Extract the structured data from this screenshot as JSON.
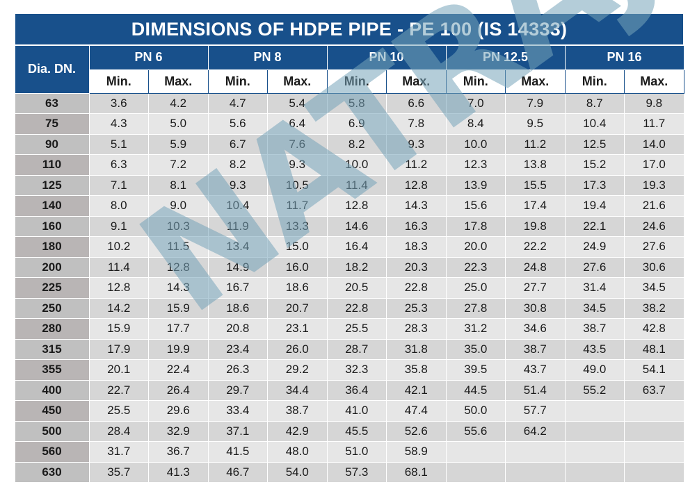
{
  "title": "DIMENSIONS OF HDPE PIPE - PE 100 (IS 14333)",
  "dia_header": "Dia. DN.",
  "pressure_classes": [
    "PN 6",
    "PN 8",
    "PN 10",
    "PN 12.5",
    "PN 16"
  ],
  "min_label": "Min.",
  "max_label": "Max.",
  "watermark": "NATRAJ",
  "colors": {
    "header_blue": "#18508b",
    "watermark": "#76a4ba"
  },
  "rows": [
    {
      "dia": "63",
      "values": [
        "3.6",
        "4.2",
        "4.7",
        "5.4",
        "5.8",
        "6.6",
        "7.0",
        "7.9",
        "8.7",
        "9.8"
      ]
    },
    {
      "dia": "75",
      "values": [
        "4.3",
        "5.0",
        "5.6",
        "6.4",
        "6.9",
        "7.8",
        "8.4",
        "9.5",
        "10.4",
        "11.7"
      ]
    },
    {
      "dia": "90",
      "values": [
        "5.1",
        "5.9",
        "6.7",
        "7.6",
        "8.2",
        "9.3",
        "10.0",
        "11.2",
        "12.5",
        "14.0"
      ]
    },
    {
      "dia": "110",
      "values": [
        "6.3",
        "7.2",
        "8.2",
        "9.3",
        "10.0",
        "11.2",
        "12.3",
        "13.8",
        "15.2",
        "17.0"
      ]
    },
    {
      "dia": "125",
      "values": [
        "7.1",
        "8.1",
        "9.3",
        "10.5",
        "11.4",
        "12.8",
        "13.9",
        "15.5",
        "17.3",
        "19.3"
      ]
    },
    {
      "dia": "140",
      "values": [
        "8.0",
        "9.0",
        "10.4",
        "11.7",
        "12.8",
        "14.3",
        "15.6",
        "17.4",
        "19.4",
        "21.6"
      ]
    },
    {
      "dia": "160",
      "values": [
        "9.1",
        "10.3",
        "11.9",
        "13.3",
        "14.6",
        "16.3",
        "17.8",
        "19.8",
        "22.1",
        "24.6"
      ]
    },
    {
      "dia": "180",
      "values": [
        "10.2",
        "11.5",
        "13.4",
        "15.0",
        "16.4",
        "18.3",
        "20.0",
        "22.2",
        "24.9",
        "27.6"
      ]
    },
    {
      "dia": "200",
      "values": [
        "11.4",
        "12.8",
        "14.9",
        "16.0",
        "18.2",
        "20.3",
        "22.3",
        "24.8",
        "27.6",
        "30.6"
      ]
    },
    {
      "dia": "225",
      "values": [
        "12.8",
        "14.3",
        "16.7",
        "18.6",
        "20.5",
        "22.8",
        "25.0",
        "27.7",
        "31.4",
        "34.5"
      ]
    },
    {
      "dia": "250",
      "values": [
        "14.2",
        "15.9",
        "18.6",
        "20.7",
        "22.8",
        "25.3",
        "27.8",
        "30.8",
        "34.5",
        "38.2"
      ]
    },
    {
      "dia": "280",
      "values": [
        "15.9",
        "17.7",
        "20.8",
        "23.1",
        "25.5",
        "28.3",
        "31.2",
        "34.6",
        "38.7",
        "42.8"
      ]
    },
    {
      "dia": "315",
      "values": [
        "17.9",
        "19.9",
        "23.4",
        "26.0",
        "28.7",
        "31.8",
        "35.0",
        "38.7",
        "43.5",
        "48.1"
      ]
    },
    {
      "dia": "355",
      "values": [
        "20.1",
        "22.4",
        "26.3",
        "29.2",
        "32.3",
        "35.8",
        "39.5",
        "43.7",
        "49.0",
        "54.1"
      ]
    },
    {
      "dia": "400",
      "values": [
        "22.7",
        "26.4",
        "29.7",
        "34.4",
        "36.4",
        "42.1",
        "44.5",
        "51.4",
        "55.2",
        "63.7"
      ]
    },
    {
      "dia": "450",
      "values": [
        "25.5",
        "29.6",
        "33.4",
        "38.7",
        "41.0",
        "47.4",
        "50.0",
        "57.7",
        "",
        ""
      ]
    },
    {
      "dia": "500",
      "values": [
        "28.4",
        "32.9",
        "37.1",
        "42.9",
        "45.5",
        "52.6",
        "55.6",
        "64.2",
        "",
        ""
      ]
    },
    {
      "dia": "560",
      "values": [
        "31.7",
        "36.7",
        "41.5",
        "48.0",
        "51.0",
        "58.9",
        "",
        "",
        "",
        ""
      ]
    },
    {
      "dia": "630",
      "values": [
        "35.7",
        "41.3",
        "46.7",
        "54.0",
        "57.3",
        "68.1",
        "",
        "",
        "",
        ""
      ]
    }
  ]
}
